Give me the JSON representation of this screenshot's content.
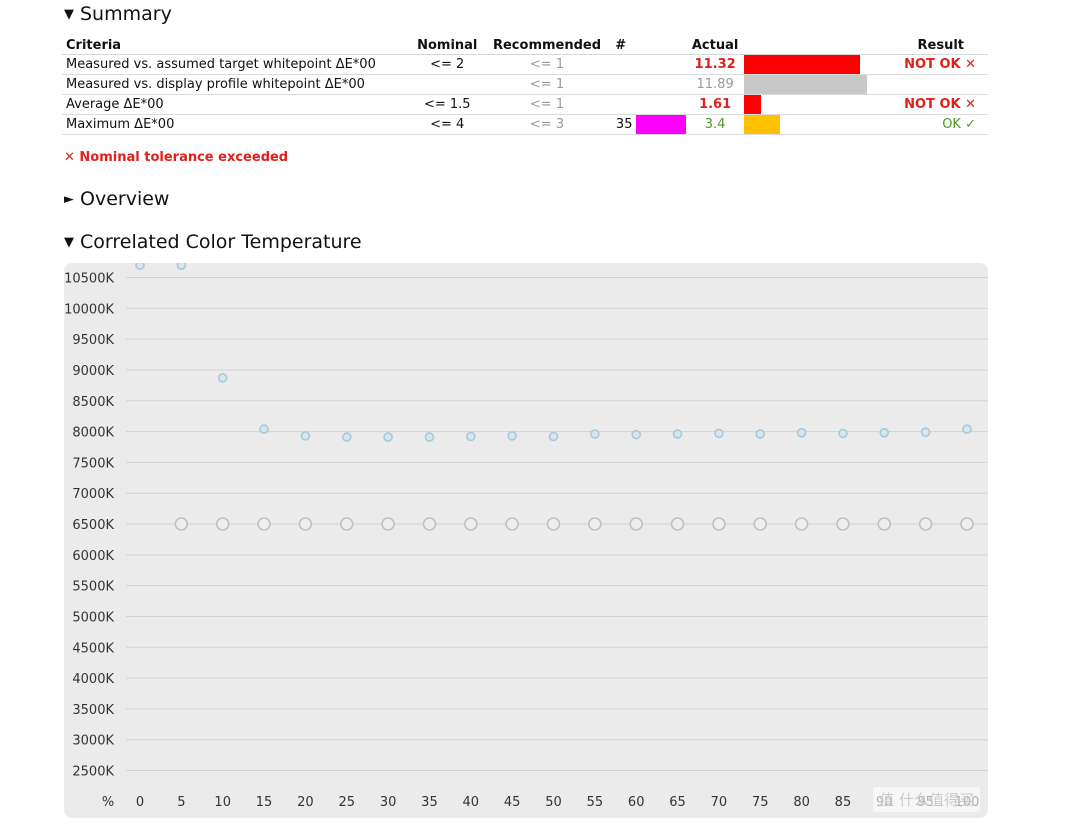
{
  "summary": {
    "title": "Summary",
    "headers": {
      "criteria": "Criteria",
      "nominal": "Nominal",
      "recommended": "Recommended",
      "num": "#",
      "actual": "Actual",
      "result": "Result"
    },
    "rows": [
      {
        "criteria": "Measured vs. assumed target whitepoint ΔE*00",
        "nominal": "<= 2",
        "recommended": "<= 1",
        "num": "",
        "actual": "11.32",
        "result": "NOT OK ✕",
        "bar_fraction": 1.0
      },
      {
        "criteria": "Measured vs. display profile whitepoint ΔE*00",
        "nominal": "",
        "recommended": "<= 1",
        "num": "",
        "actual": "11.89",
        "result": "",
        "bar_fraction": 1.0
      },
      {
        "criteria": "Average ΔE*00",
        "nominal": "<= 1.5",
        "recommended": "<= 1",
        "num": "",
        "actual": "1.61",
        "result": "NOT OK ✕",
        "bar_fraction": 0.14
      },
      {
        "criteria": "Maximum ΔE*00",
        "nominal": "<= 4",
        "recommended": "<= 3",
        "num": "35",
        "actual": "3.4",
        "result": "OK ✓",
        "bar_fraction": 0.3
      }
    ],
    "colors": {
      "fail_bar": "#ff0000",
      "neutral_bar": "#c8c8c8",
      "warn_bar": "#ffc000",
      "swatch": "#ff00ff",
      "fail_text": "#e0201a",
      "ok_text": "#4a9a20"
    }
  },
  "tolerance_message": "✕ Nominal tolerance exceeded",
  "overview": {
    "title": "Overview"
  },
  "cct": {
    "title": "Correlated Color Temperature"
  },
  "chart_data": {
    "type": "scatter",
    "title": "Correlated Color Temperature",
    "xlabel": "%",
    "ylabel": "",
    "x_ticks": [
      0,
      5,
      10,
      15,
      20,
      25,
      30,
      35,
      40,
      45,
      50,
      55,
      60,
      65,
      70,
      75,
      80,
      85,
      90,
      95,
      100
    ],
    "y_ticks": [
      "2500K",
      "3000K",
      "3500K",
      "4000K",
      "4500K",
      "5000K",
      "5500K",
      "6000K",
      "6500K",
      "7000K",
      "7500K",
      "8000K",
      "8500K",
      "9000K",
      "9500K",
      "10000K",
      "10500K"
    ],
    "ylim": [
      2500,
      10500
    ],
    "xlim": [
      0,
      100
    ],
    "grid": true,
    "series": [
      {
        "x": [
          0,
          5,
          10,
          15,
          20,
          25,
          30,
          35,
          40,
          45,
          50,
          55,
          60,
          65,
          70,
          75,
          80,
          85,
          90,
          95,
          100
        ],
        "values": [
          10700,
          10700,
          8870,
          8040,
          7930,
          7910,
          7910,
          7910,
          7920,
          7930,
          7920,
          7960,
          7950,
          7960,
          7970,
          7960,
          7980,
          7970,
          7980,
          7990,
          8040
        ],
        "color": "#a8c8d8"
      },
      {
        "x": [
          5,
          10,
          15,
          20,
          25,
          30,
          35,
          40,
          45,
          50,
          55,
          60,
          65,
          70,
          75,
          80,
          85,
          90,
          95,
          100
        ],
        "values": [
          6500,
          6500,
          6500,
          6500,
          6500,
          6500,
          6500,
          6500,
          6500,
          6500,
          6500,
          6500,
          6500,
          6500,
          6500,
          6500,
          6500,
          6500,
          6500,
          6500
        ],
        "color": "#c0c0c0"
      }
    ]
  },
  "watermark": "值 什么值得买"
}
